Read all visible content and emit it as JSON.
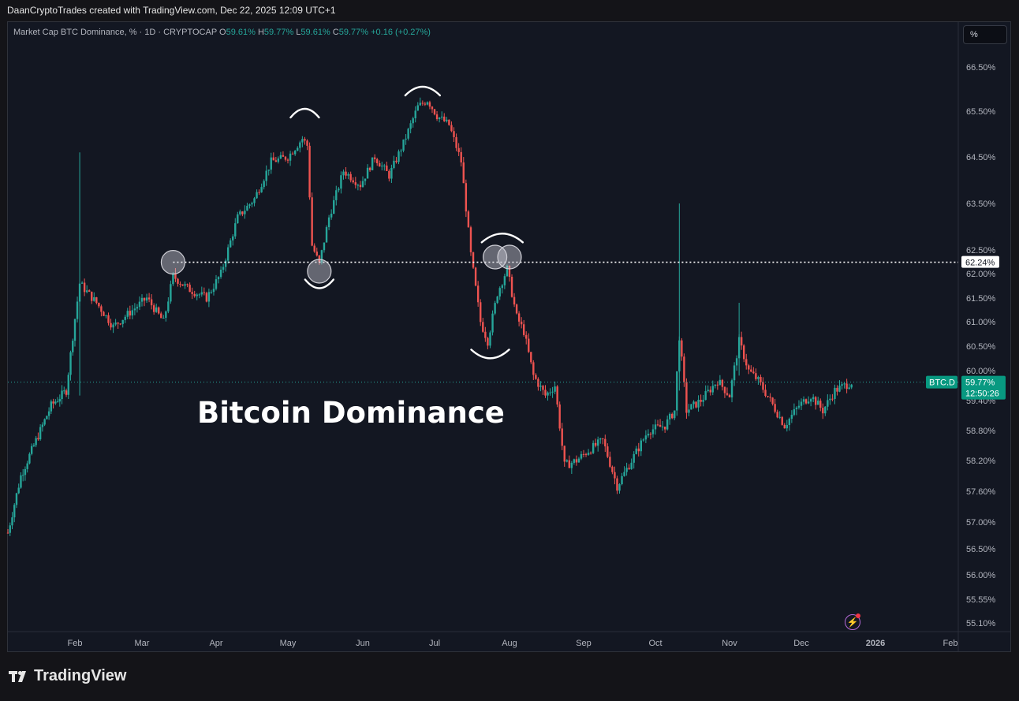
{
  "header": {
    "credit": "DaanCryptoTrades created with TradingView.com, Dec 22, 2025 12:09 UTC+1"
  },
  "legend": {
    "symbol": "Market Cap BTC Dominance, % · 1D · CRYPTOCAP",
    "o_label": "O",
    "o": "59.61%",
    "h_label": "H",
    "h": "59.77%",
    "l_label": "L",
    "l": "59.61%",
    "c_label": "C",
    "c": "59.77%",
    "change": "+0.16 (+0.27%)"
  },
  "scale_button": "%",
  "annotation_title": "Bitcoin Dominance",
  "footer": {
    "brand": "TradingView"
  },
  "colors": {
    "up": "#26a69a",
    "down": "#ef5350",
    "background": "#131722",
    "text": "#b2b5be"
  },
  "chart_data": {
    "type": "candlestick",
    "title": "",
    "x_ticks": [
      "Feb",
      "Mar",
      "Apr",
      "May",
      "Jun",
      "Jul",
      "Aug",
      "Sep",
      "Oct",
      "Nov",
      "Dec",
      "2026",
      "Feb"
    ],
    "y_ticks": [
      "66.50%",
      "65.50%",
      "64.50%",
      "63.50%",
      "62.50%",
      "62.00%",
      "61.50%",
      "61.00%",
      "60.50%",
      "60.00%",
      "59.40%",
      "58.80%",
      "58.20%",
      "57.60%",
      "57.00%",
      "56.50%",
      "56.00%",
      "55.55%",
      "55.10%"
    ],
    "ylim": [
      55.0,
      67.0
    ],
    "support_level": 62.24,
    "support_label": "62.24%",
    "current": {
      "symbol": "BTC.D",
      "value": 59.77,
      "label": "59.77%",
      "countdown": "12:50:26"
    },
    "series_path": [
      [
        "2025-01-01",
        56.8
      ],
      [
        "2025-01-07",
        57.9
      ],
      [
        "2025-01-14",
        58.6
      ],
      [
        "2025-01-21",
        59.3
      ],
      [
        "2025-01-28",
        59.6
      ],
      [
        "2025-02-03",
        61.8
      ],
      [
        "2025-02-10",
        61.4
      ],
      [
        "2025-02-17",
        60.9
      ],
      [
        "2025-02-24",
        61.2
      ],
      [
        "2025-03-03",
        61.5
      ],
      [
        "2025-03-10",
        61.0
      ],
      [
        "2025-03-14",
        61.95
      ],
      [
        "2025-03-20",
        61.7
      ],
      [
        "2025-03-28",
        61.5
      ],
      [
        "2025-04-03",
        62.0
      ],
      [
        "2025-04-10",
        63.2
      ],
      [
        "2025-04-17",
        63.6
      ],
      [
        "2025-04-24",
        64.4
      ],
      [
        "2025-05-01",
        64.5
      ],
      [
        "2025-05-07",
        64.9
      ],
      [
        "2025-05-09",
        64.75
      ],
      [
        "2025-05-11",
        62.6
      ],
      [
        "2025-05-14",
        62.2
      ],
      [
        "2025-05-18",
        63.2
      ],
      [
        "2025-05-24",
        64.2
      ],
      [
        "2025-05-31",
        63.9
      ],
      [
        "2025-06-06",
        64.5
      ],
      [
        "2025-06-12",
        64.1
      ],
      [
        "2025-06-18",
        64.8
      ],
      [
        "2025-06-24",
        65.6
      ],
      [
        "2025-06-28",
        65.75
      ],
      [
        "2025-07-02",
        65.4
      ],
      [
        "2025-07-07",
        65.2
      ],
      [
        "2025-07-12",
        64.4
      ],
      [
        "2025-07-16",
        62.4
      ],
      [
        "2025-07-20",
        61.0
      ],
      [
        "2025-07-23",
        60.6
      ],
      [
        "2025-07-27",
        61.6
      ],
      [
        "2025-07-31",
        62.1
      ],
      [
        "2025-08-04",
        61.1
      ],
      [
        "2025-08-07",
        60.8
      ],
      [
        "2025-08-11",
        59.9
      ],
      [
        "2025-08-16",
        59.5
      ],
      [
        "2025-08-20",
        59.7
      ],
      [
        "2025-08-24",
        58.1
      ],
      [
        "2025-08-29",
        58.2
      ],
      [
        "2025-09-03",
        58.4
      ],
      [
        "2025-09-09",
        58.6
      ],
      [
        "2025-09-15",
        57.7
      ],
      [
        "2025-09-21",
        58.2
      ],
      [
        "2025-09-28",
        58.8
      ],
      [
        "2025-10-05",
        58.9
      ],
      [
        "2025-10-09",
        59.2
      ],
      [
        "2025-10-11",
        60.7
      ],
      [
        "2025-10-14",
        59.2
      ],
      [
        "2025-10-20",
        59.4
      ],
      [
        "2025-10-27",
        59.8
      ],
      [
        "2025-11-01",
        59.5
      ],
      [
        "2025-11-05",
        60.6
      ],
      [
        "2025-11-09",
        60.0
      ],
      [
        "2025-11-13",
        59.8
      ],
      [
        "2025-11-18",
        59.4
      ],
      [
        "2025-11-24",
        58.9
      ],
      [
        "2025-11-30",
        59.3
      ],
      [
        "2025-12-05",
        59.5
      ],
      [
        "2025-12-10",
        59.2
      ],
      [
        "2025-12-15",
        59.6
      ],
      [
        "2025-12-22",
        59.77
      ]
    ],
    "spikes": [
      {
        "date": "2025-02-03",
        "high": 64.6,
        "low": 59.5
      },
      {
        "date": "2025-10-11",
        "high": 63.5,
        "low": 59.6
      },
      {
        "date": "2025-11-05",
        "high": 61.4,
        "low": 59.9
      }
    ],
    "highlight_circles": [
      {
        "date": "2025-03-14",
        "value": 62.24
      },
      {
        "date": "2025-05-14",
        "value": 62.05
      },
      {
        "date": "2025-07-26",
        "value": 62.35
      },
      {
        "date": "2025-08-01",
        "value": 62.35
      }
    ],
    "arc_marks": [
      {
        "date": "2025-05-08",
        "value": 65.5,
        "shape": "top"
      },
      {
        "date": "2025-06-26",
        "value": 66.0,
        "shape": "top"
      },
      {
        "date": "2025-05-14",
        "value": 61.75,
        "shape": "bottom"
      },
      {
        "date": "2025-07-24",
        "value": 60.3,
        "shape": "bottom"
      },
      {
        "date": "2025-07-29",
        "value": 62.8,
        "shape": "top"
      }
    ]
  }
}
